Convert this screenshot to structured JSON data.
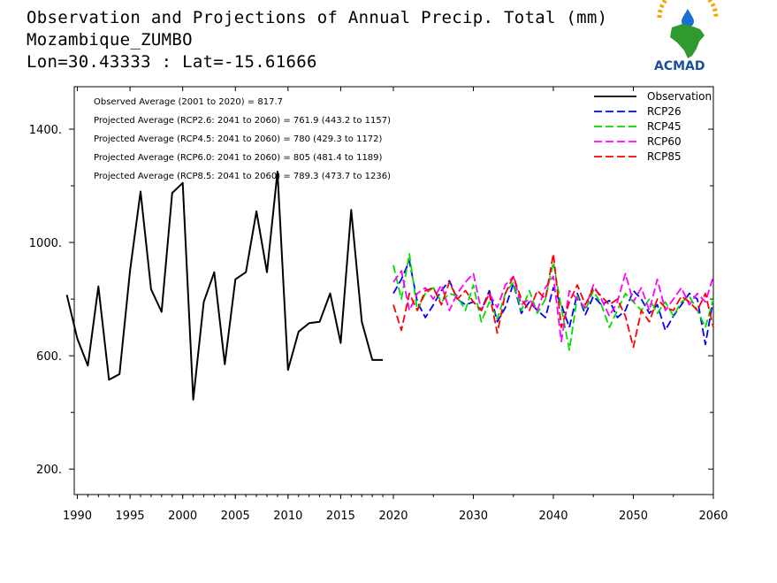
{
  "title": {
    "line1": "Observation and Projections of Annual Precip. Total (mm)",
    "line2": "Mozambique_ZUMBO",
    "line3": "Lon=30.43333 : Lat=-15.61666"
  },
  "logo": {
    "text": "ACMAD"
  },
  "stats": [
    "Observed Average (2001 to 2020) = 817.7",
    "Projected Average (RCP2.6: 2041 to 2060) = 761.9 (443.2 to 1157)",
    "Projected Average (RCP4.5: 2041 to 2060) = 780 (429.3 to 1172)",
    "Projected Average (RCP6.0: 2041 to 2060) = 805 (481.4 to 1189)",
    "Projected Average (RCP8.5: 2041 to 2060) = 789.3 (473.7 to 1236)"
  ],
  "chart_data": {
    "type": "line",
    "xlim": [
      1989,
      2060
    ],
    "ylim": [
      110,
      1550
    ],
    "x_ticks": [
      1990,
      1995,
      2000,
      2005,
      2010,
      2015,
      2020,
      2030,
      2040,
      2050,
      2060
    ],
    "x_tick_labels": [
      "1990",
      "1995",
      "2000",
      "2005",
      "2010",
      "2015",
      "2020",
      "2030",
      "2040",
      "2050",
      "2060"
    ],
    "y_ticks": [
      200,
      600,
      1000,
      1400
    ],
    "y_tick_labels": [
      "200.",
      "600.",
      "1000.",
      "1400."
    ],
    "y_minor_ticks": [
      400,
      800,
      1200
    ],
    "legend_position": "top-right",
    "series": [
      {
        "name": "Observation",
        "color": "#000000",
        "style": "solid",
        "x": [
          1989,
          1990,
          1991,
          1992,
          1993,
          1994,
          1995,
          1996,
          1997,
          1998,
          1999,
          2000,
          2001,
          2002,
          2003,
          2004,
          2005,
          2006,
          2007,
          2008,
          2009,
          2010,
          2011,
          2012,
          2013,
          2014,
          2015,
          2016,
          2017,
          2018,
          2019
        ],
        "values": [
          815,
          660,
          565,
          845,
          515,
          535,
          900,
          1180,
          835,
          755,
          1175,
          1210,
          445,
          790,
          895,
          570,
          870,
          895,
          1110,
          895,
          1250,
          550,
          685,
          715,
          720,
          820,
          645,
          1115,
          720,
          585,
          585
        ]
      },
      {
        "name": "RCP26",
        "color": "#0000ff",
        "style": "dashed",
        "x": [
          2020,
          2021,
          2022,
          2023,
          2024,
          2025,
          2026,
          2027,
          2028,
          2029,
          2030,
          2031,
          2032,
          2033,
          2034,
          2035,
          2036,
          2037,
          2038,
          2039,
          2040,
          2041,
          2042,
          2043,
          2044,
          2045,
          2046,
          2047,
          2048,
          2049,
          2050,
          2051,
          2052,
          2053,
          2054,
          2055,
          2056,
          2057,
          2058,
          2059,
          2060
        ],
        "values": [
          820,
          870,
          935,
          790,
          735,
          780,
          830,
          865,
          800,
          780,
          790,
          760,
          830,
          720,
          770,
          855,
          750,
          790,
          760,
          735,
          840,
          780,
          700,
          820,
          745,
          810,
          780,
          795,
          735,
          760,
          830,
          800,
          750,
          780,
          690,
          740,
          780,
          820,
          800,
          640,
          800
        ]
      },
      {
        "name": "RCP45",
        "color": "#00dd00",
        "style": "dashed",
        "x": [
          2020,
          2021,
          2022,
          2023,
          2024,
          2025,
          2026,
          2027,
          2028,
          2029,
          2030,
          2031,
          2032,
          2033,
          2034,
          2035,
          2036,
          2037,
          2038,
          2039,
          2040,
          2041,
          2042,
          2043,
          2044,
          2045,
          2046,
          2047,
          2048,
          2049,
          2050,
          2051,
          2052,
          2053,
          2054,
          2055,
          2056,
          2057,
          2058,
          2059,
          2060
        ],
        "values": [
          920,
          800,
          960,
          760,
          820,
          840,
          790,
          820,
          810,
          760,
          850,
          720,
          790,
          730,
          820,
          860,
          760,
          830,
          750,
          800,
          930,
          770,
          620,
          810,
          760,
          830,
          780,
          700,
          760,
          820,
          790,
          760,
          800,
          750,
          790,
          740,
          790,
          810,
          760,
          700,
          800
        ]
      },
      {
        "name": "RCP60",
        "color": "#ff00ff",
        "style": "dashed",
        "x": [
          2020,
          2021,
          2022,
          2023,
          2024,
          2025,
          2026,
          2027,
          2028,
          2029,
          2030,
          2031,
          2032,
          2033,
          2034,
          2035,
          2036,
          2037,
          2038,
          2039,
          2040,
          2041,
          2042,
          2043,
          2044,
          2045,
          2046,
          2047,
          2048,
          2049,
          2050,
          2051,
          2052,
          2053,
          2054,
          2055,
          2056,
          2057,
          2058,
          2059,
          2060
        ],
        "values": [
          860,
          900,
          760,
          820,
          840,
          800,
          850,
          760,
          820,
          860,
          890,
          760,
          820,
          770,
          850,
          880,
          780,
          800,
          760,
          840,
          880,
          650,
          830,
          800,
          770,
          850,
          800,
          740,
          790,
          890,
          790,
          840,
          760,
          870,
          760,
          800,
          840,
          780,
          820,
          790,
          880
        ]
      },
      {
        "name": "RCP85",
        "color": "#ff0000",
        "style": "dashed",
        "x": [
          2020,
          2021,
          2022,
          2023,
          2024,
          2025,
          2026,
          2027,
          2028,
          2029,
          2030,
          2031,
          2032,
          2033,
          2034,
          2035,
          2036,
          2037,
          2038,
          2039,
          2040,
          2041,
          2042,
          2043,
          2044,
          2045,
          2046,
          2047,
          2048,
          2049,
          2050,
          2051,
          2052,
          2053,
          2054,
          2055,
          2056,
          2057,
          2058,
          2059,
          2060
        ],
        "values": [
          780,
          690,
          820,
          760,
          830,
          840,
          780,
          860,
          800,
          830,
          790,
          760,
          820,
          680,
          820,
          880,
          800,
          760,
          830,
          800,
          960,
          700,
          790,
          850,
          780,
          840,
          810,
          780,
          800,
          740,
          630,
          760,
          720,
          800,
          770,
          760,
          810,
          790,
          760,
          820,
          700
        ]
      }
    ]
  }
}
